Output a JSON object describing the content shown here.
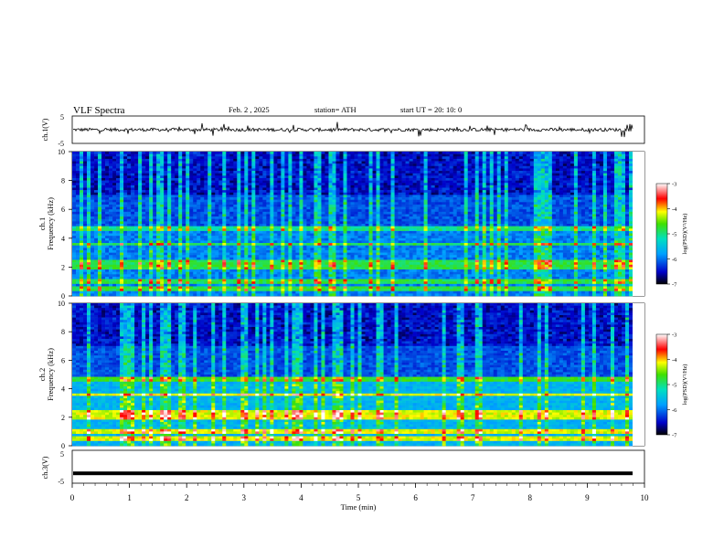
{
  "header": {
    "title": "VLF Spectra",
    "date": "Feb. 2 , 2025",
    "station": "station= ATH",
    "start": "start UT = 20: 10: 0"
  },
  "chart_data": [
    {
      "type": "line",
      "panel": "ch1-waveform",
      "ylabel": "ch.1(V)",
      "yticks": [
        "5",
        "-5"
      ],
      "ylim": [
        -5,
        5
      ],
      "xlim": [
        0,
        10
      ],
      "description_level": 0,
      "series_color": "#000000"
    },
    {
      "type": "heatmap",
      "panel": "ch1-spectrogram",
      "ylabel_top": "ch.1",
      "ylabel": "Frequency (kHz)",
      "yticks": [
        "0",
        "2",
        "4",
        "6",
        "8",
        "10"
      ],
      "ylim": [
        0,
        10
      ],
      "xlim": [
        0,
        10
      ],
      "bands_khz": [
        0.5,
        1.0,
        2.0,
        2.3,
        3.6,
        4.7
      ],
      "colorbar": {
        "label": "log(PSD)(V²/Hz)",
        "ticks": [
          "-3",
          "-4",
          "-5",
          "-6",
          "-7"
        ],
        "range": [
          -7,
          -3
        ]
      }
    },
    {
      "type": "heatmap",
      "panel": "ch2-spectrogram",
      "ylabel_top": "ch.2",
      "ylabel": "Frequency (kHz)",
      "yticks": [
        "0",
        "2",
        "4",
        "6",
        "8",
        "10"
      ],
      "ylim": [
        0,
        10
      ],
      "xlim": [
        0,
        10
      ],
      "bands_khz": [
        0.5,
        1.0,
        2.0,
        2.3,
        3.6,
        4.7
      ],
      "colorbar": {
        "label": "log(PSD)(V²/Hz)",
        "ticks": [
          "-3",
          "-4",
          "-5",
          "-6",
          "-7"
        ],
        "range": [
          -7,
          -3
        ]
      }
    },
    {
      "type": "line",
      "panel": "ch3-waveform",
      "ylabel": "ch.3(V)",
      "yticks": [
        "5",
        "-5"
      ],
      "ylim": [
        -5,
        5
      ],
      "xlim": [
        0,
        10
      ],
      "level": -2,
      "series_color": "#000000"
    }
  ],
  "xaxis": {
    "label": "Time (min)",
    "ticks": [
      "0",
      "1",
      "2",
      "3",
      "4",
      "5",
      "6",
      "7",
      "8",
      "9",
      "10"
    ]
  },
  "colors": {
    "background": "#ffffff",
    "axis": "#000000",
    "low": "#000000",
    "mid": "#0000c8",
    "high": "#ffffff"
  }
}
